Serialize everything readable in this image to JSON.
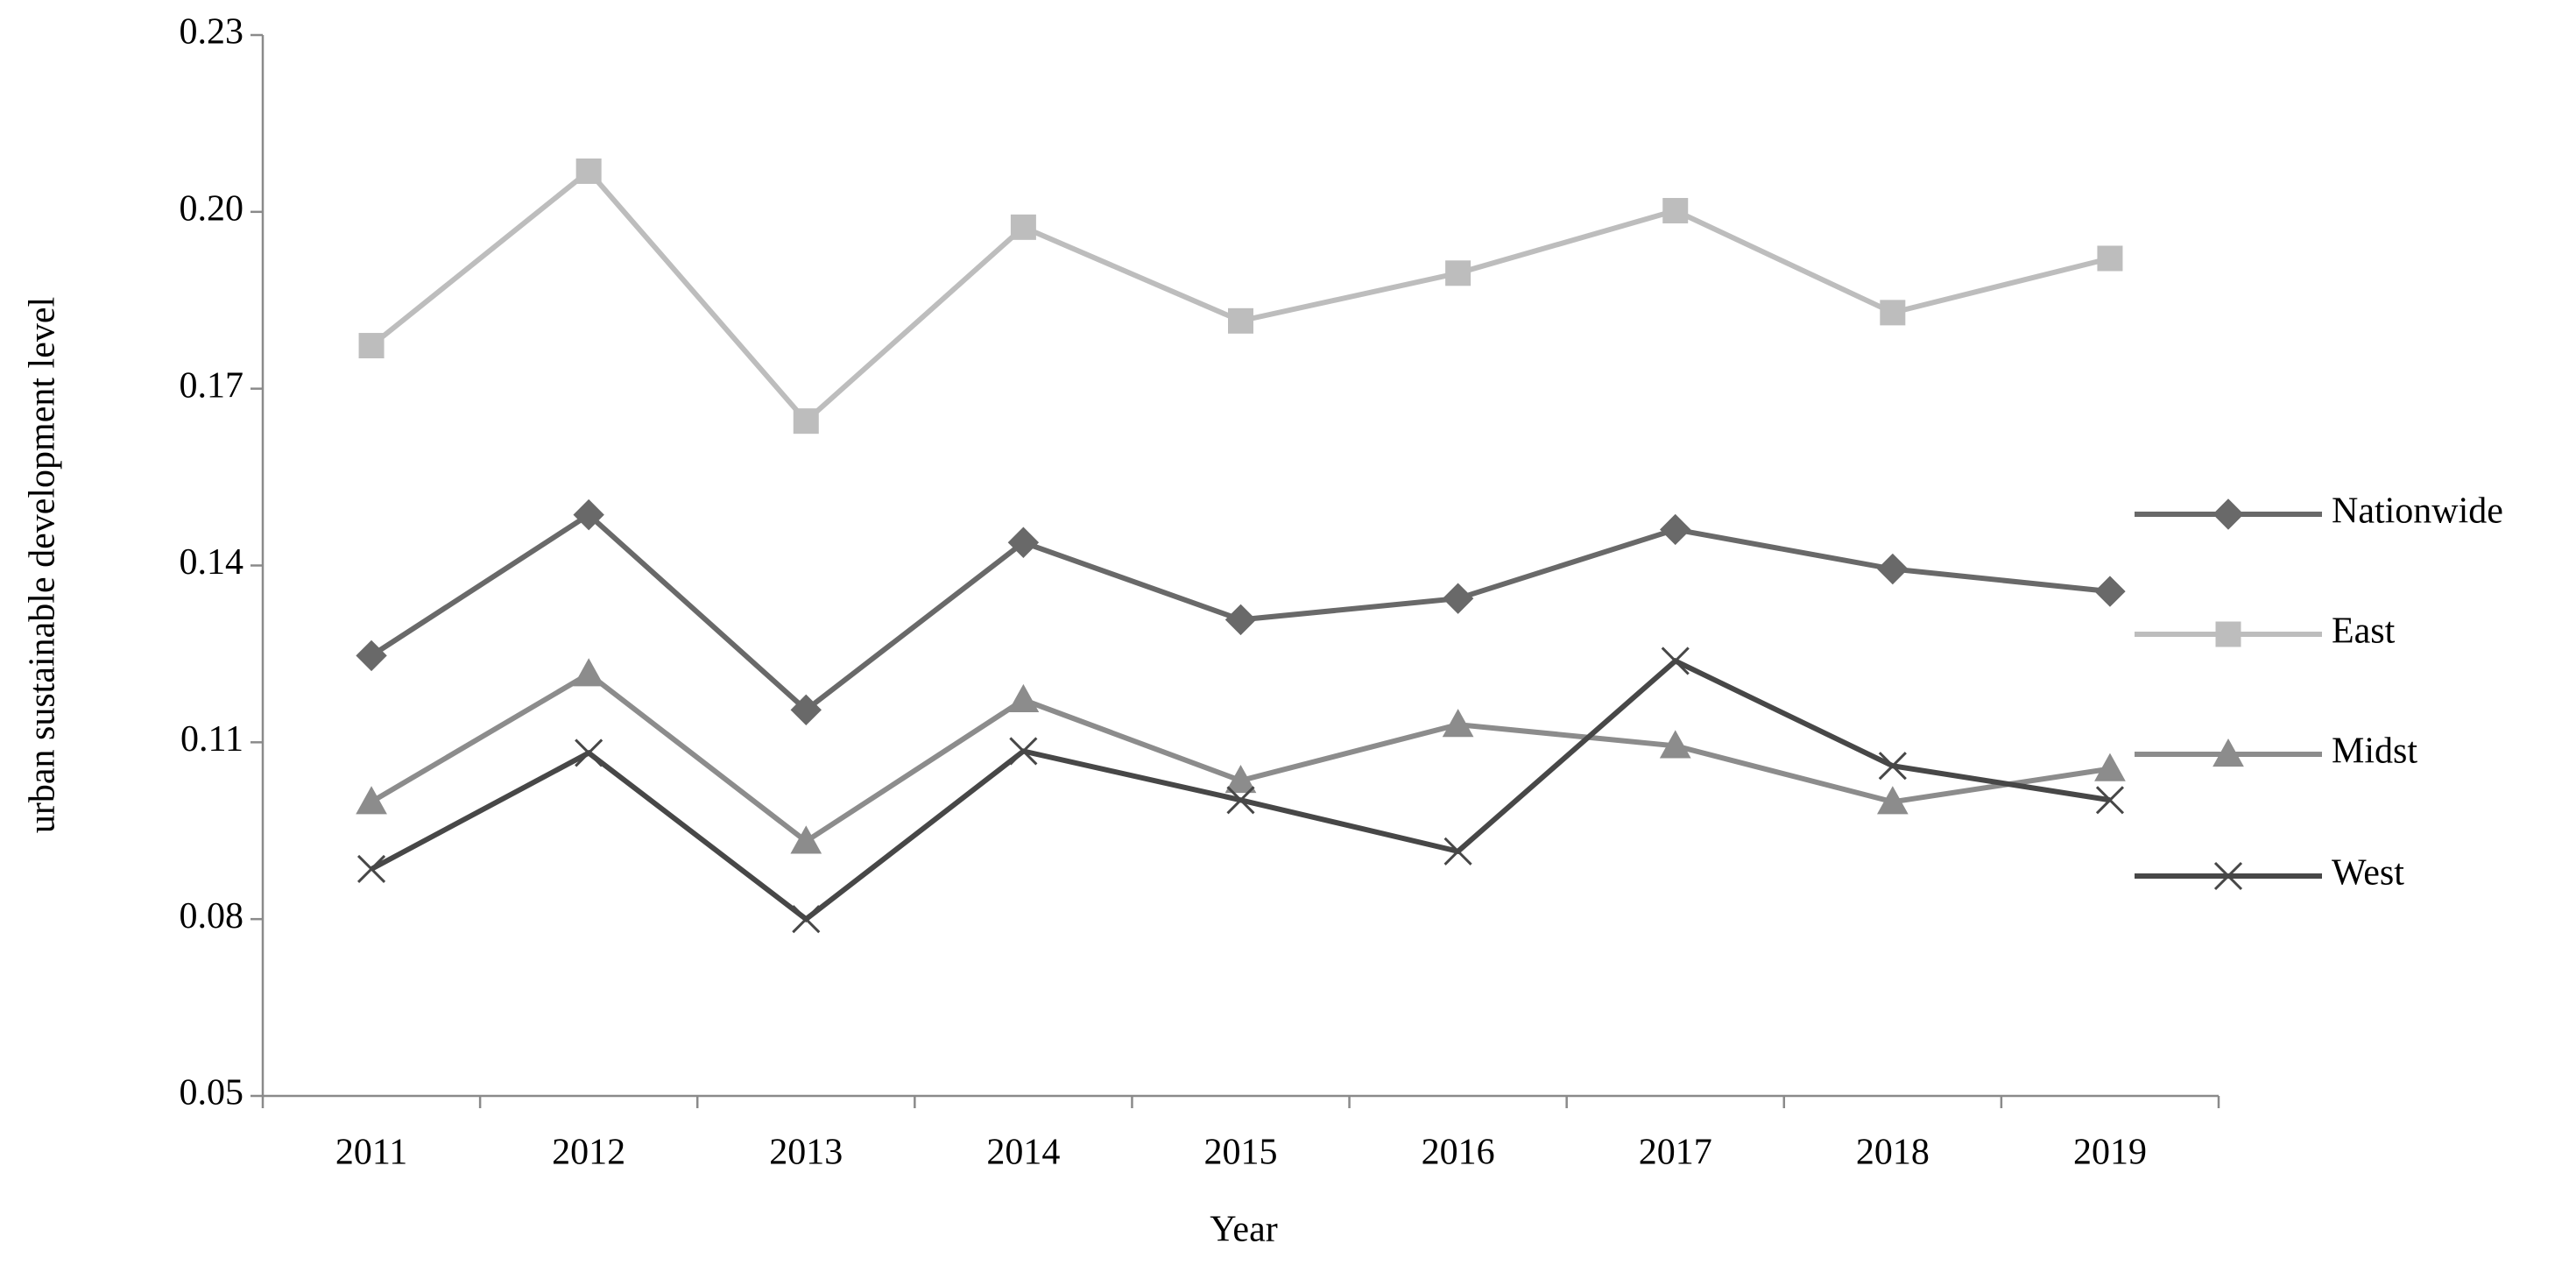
{
  "chart_data": {
    "type": "line",
    "y_label": "urban sustainable development  level",
    "x_label": "Year",
    "categories": [
      "2011",
      "2012",
      "2013",
      "2014",
      "2015",
      "2016",
      "2017",
      "2018",
      "2019"
    ],
    "series": [
      {
        "name": "Nationwide",
        "color": "#696969",
        "marker": "diamond",
        "values": [
          0.1247,
          0.1486,
          0.1155,
          0.1439,
          0.1308,
          0.1344,
          0.1461,
          0.1394,
          0.1356
        ]
      },
      {
        "name": "East",
        "color": "#bdbdbd",
        "marker": "square",
        "values": [
          0.1773,
          0.2069,
          0.1645,
          0.1974,
          0.1815,
          0.1896,
          0.2002,
          0.1829,
          0.1921
        ]
      },
      {
        "name": "Midst",
        "color": "#8c8c8c",
        "marker": "triangle",
        "values": [
          0.0999,
          0.1216,
          0.0932,
          0.1172,
          0.1035,
          0.113,
          0.1094,
          0.0999,
          0.1055
        ]
      },
      {
        "name": "West",
        "color": "#474747",
        "marker": "x",
        "values": [
          0.0885,
          0.1082,
          0.08,
          0.1085,
          0.1002,
          0.0915,
          0.1238,
          0.106,
          0.1002
        ]
      }
    ],
    "ylim": [
      0.05,
      0.23
    ],
    "yticks": [
      0.05,
      0.08,
      0.11,
      0.14,
      0.17,
      {
        "value": 0.2,
        "label": "0.20"
      },
      0.23
    ],
    "grid": false,
    "legend": "right"
  }
}
